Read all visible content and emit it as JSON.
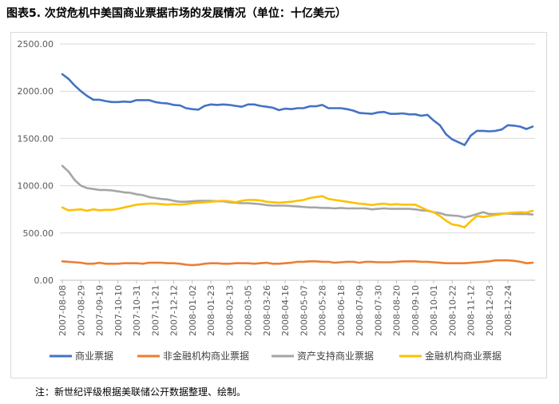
{
  "title": "图表5.  次贷危机中美国商业票据市场的发展情况（单位：十亿美元）",
  "note": "注：新世纪评级根据美联储公开数据整理、绘制。",
  "chart_data": {
    "type": "line",
    "title": "图表5.  次贷危机中美国商业票据市场的发展情况（单位：十亿美元）",
    "ylim": [
      0,
      2500
    ],
    "yticks": [
      "0.00",
      "500.00",
      "1000.00",
      "1500.00",
      "2000.00",
      "2500.00"
    ],
    "grid": true,
    "legend_position": "bottom",
    "xtick_labels": [
      "2007-08-08",
      "2007-08-29",
      "2007-09-19",
      "2007-10-10",
      "2007-10-31",
      "2007-11-21",
      "2007-12-12",
      "2008-01-02",
      "2008-01-23",
      "2008-02-13",
      "2008-03-05",
      "2008-03-26",
      "2008-04-16",
      "2008-05-07",
      "2008-05-28",
      "2008-06-18",
      "2008-07-09",
      "2008-07-30",
      "2008-08-20",
      "2008-09-10",
      "2008-10-01",
      "2008-10-22",
      "2008-11-12",
      "2008-12-03",
      "2008-12-24"
    ],
    "x_weeks_per_tick": 3,
    "series": [
      {
        "name": "商业票据",
        "color": "#4472c4",
        "values": [
          2180,
          2130,
          2060,
          2000,
          1950,
          1910,
          1910,
          1895,
          1885,
          1885,
          1890,
          1885,
          1905,
          1905,
          1905,
          1885,
          1875,
          1870,
          1855,
          1850,
          1820,
          1810,
          1805,
          1845,
          1860,
          1855,
          1860,
          1855,
          1845,
          1835,
          1860,
          1860,
          1845,
          1835,
          1825,
          1800,
          1815,
          1810,
          1820,
          1820,
          1840,
          1840,
          1855,
          1820,
          1820,
          1820,
          1810,
          1795,
          1770,
          1765,
          1760,
          1775,
          1780,
          1760,
          1760,
          1765,
          1755,
          1755,
          1740,
          1750,
          1690,
          1640,
          1545,
          1490,
          1460,
          1430,
          1530,
          1580,
          1580,
          1575,
          1580,
          1595,
          1640,
          1635,
          1625,
          1600,
          1625
        ]
      },
      {
        "name": "非金融机构商业票据",
        "color": "#ed7d31",
        "values": [
          200,
          195,
          190,
          185,
          175,
          175,
          185,
          175,
          175,
          175,
          180,
          180,
          180,
          175,
          185,
          185,
          185,
          180,
          180,
          175,
          165,
          160,
          165,
          175,
          180,
          180,
          175,
          175,
          180,
          180,
          180,
          175,
          180,
          185,
          175,
          175,
          180,
          185,
          195,
          195,
          200,
          200,
          195,
          195,
          185,
          190,
          195,
          195,
          185,
          195,
          195,
          190,
          190,
          190,
          195,
          200,
          200,
          200,
          195,
          195,
          190,
          185,
          180,
          180,
          180,
          180,
          185,
          190,
          195,
          200,
          210,
          210,
          210,
          205,
          195,
          180,
          185
        ]
      },
      {
        "name": "资产支持商业票据",
        "color": "#a5a5a5",
        "values": [
          1210,
          1150,
          1060,
          1000,
          975,
          965,
          955,
          955,
          950,
          940,
          930,
          925,
          910,
          900,
          880,
          870,
          860,
          855,
          840,
          830,
          830,
          835,
          840,
          840,
          840,
          835,
          835,
          825,
          820,
          815,
          815,
          810,
          805,
          795,
          790,
          790,
          790,
          785,
          780,
          775,
          770,
          770,
          765,
          765,
          760,
          765,
          760,
          760,
          760,
          760,
          750,
          755,
          760,
          755,
          755,
          755,
          755,
          750,
          740,
          735,
          720,
          710,
          690,
          685,
          680,
          665,
          680,
          700,
          720,
          700,
          700,
          705,
          705,
          700,
          700,
          700,
          695
        ]
      },
      {
        "name": "金融机构商业票据",
        "color": "#ffc000",
        "values": [
          770,
          740,
          745,
          750,
          735,
          750,
          740,
          745,
          745,
          755,
          770,
          785,
          800,
          805,
          810,
          810,
          805,
          800,
          805,
          800,
          805,
          815,
          820,
          825,
          830,
          835,
          840,
          835,
          825,
          840,
          850,
          850,
          845,
          830,
          825,
          820,
          825,
          830,
          840,
          850,
          870,
          880,
          890,
          860,
          850,
          840,
          830,
          820,
          810,
          805,
          795,
          805,
          810,
          800,
          805,
          800,
          800,
          800,
          770,
          740,
          720,
          680,
          630,
          590,
          580,
          560,
          625,
          680,
          670,
          680,
          690,
          700,
          710,
          715,
          720,
          715,
          735
        ]
      }
    ]
  }
}
